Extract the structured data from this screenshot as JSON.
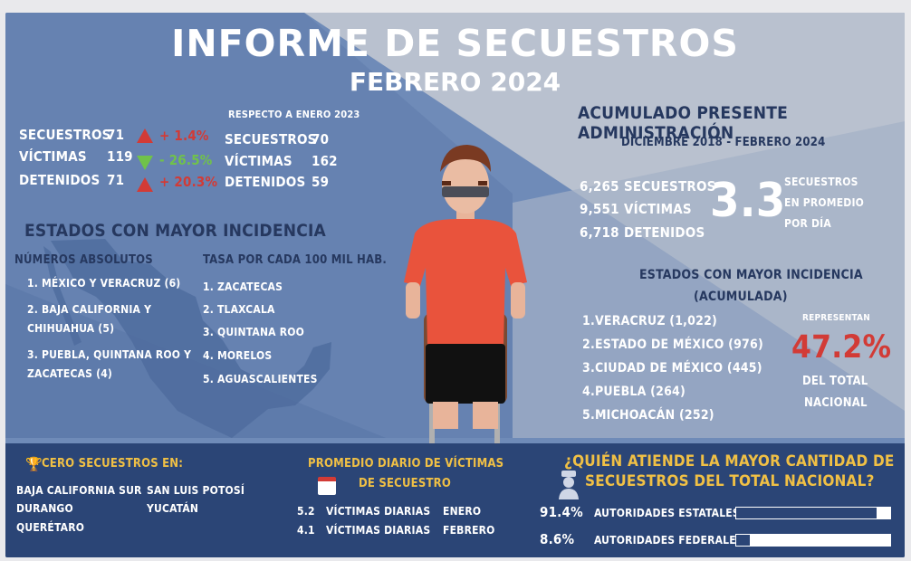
{
  "header": {
    "title": "INFORME DE SECUESTROS",
    "subtitle": "FEBRERO 2024"
  },
  "monthly": {
    "secuestros_label": "SECUESTROS",
    "secuestros_value": "71",
    "victimas_label": "VÍCTIMAS",
    "victimas_value": "119",
    "detenidos_label": "DETENIDOS",
    "detenidos_value": "71",
    "change_secuestros": "+ 1.4%",
    "change_victimas": "- 26.5%",
    "change_detenidos": "+ 20.3%"
  },
  "comparison": {
    "heading": "RESPECTO A ENERO 2023",
    "secuestros_label": "SECUESTROS",
    "secuestros_value": "70",
    "victimas_label": "VÍCTIMAS",
    "victimas_value": "162",
    "detenidos_label": "DETENIDOS",
    "detenidos_value": "59"
  },
  "states": {
    "heading": "ESTADOS CON MAYOR INCIDENCIA",
    "absolute_heading": "NÚMEROS ABSOLUTOS",
    "absolute_items": [
      "1. MÉXICO Y VERACRUZ (6)",
      "2. BAJA CALIFORNIA Y",
      "CHIHUAHUA (5)",
      "3. PUEBLA, QUINTANA ROO Y",
      "ZACATECAS (4)"
    ],
    "rate_heading": "TASA POR CADA 100 MIL HAB.",
    "rate_items": [
      "1. ZACATECAS",
      "2. TLAXCALA",
      "3. QUINTANA ROO",
      "4. MORELOS",
      "5. AGUASCALIENTES"
    ]
  },
  "cumulative": {
    "heading": "ACUMULADO PRESENTE ADMINISTRACIÓN",
    "period": "DICIEMBRE 2018 - FEBRERO 2024",
    "secuestros_value": "6,265",
    "secuestros_label": "SECUESTROS",
    "victimas_value": "9,551",
    "victimas_label": "VÍCTIMAS",
    "detenidos_value": "6,718",
    "detenidos_label": "DETENIDOS",
    "avg_value": "3.3",
    "avg_line1": "SECUESTROS",
    "avg_line2": "EN PROMEDIO",
    "avg_line3": "POR DÍA",
    "states_heading1": "ESTADOS CON MAYOR INCIDENCIA",
    "states_heading2": "(ACUMULADA)",
    "states_items": [
      "1.VERACRUZ (1,022)",
      "2.ESTADO DE MÉXICO (976)",
      "3.CIUDAD DE MÉXICO (445)",
      "4.PUEBLA (264)",
      "5.MICHOACÁN (252)"
    ],
    "represent_label": "REPRESENTAN",
    "represent_value": "47.2%",
    "represent_line1": "DEL TOTAL",
    "represent_line2": "NACIONAL"
  },
  "zero": {
    "heading": "CERO SECUESTROS EN:",
    "col1": [
      "BAJA CALIFORNIA SUR",
      "DURANGO",
      "QUERÉTARO"
    ],
    "col2": [
      "SAN LUIS POTOSÍ",
      "YUCATÁN"
    ]
  },
  "daily": {
    "heading1": "PROMEDIO DIARIO DE VÍCTIMAS",
    "heading2": "DE SECUESTRO",
    "rows": [
      {
        "value": "5.2",
        "label": "VÍCTIMAS DIARIAS",
        "month": "ENERO"
      },
      {
        "value": "4.1",
        "label": "VÍCTIMAS DIARIAS",
        "month": "FEBRERO"
      }
    ]
  },
  "who": {
    "heading1": "¿QUIÉN ATIENDE LA MAYOR CANTIDAD DE",
    "heading2": "SECUESTROS DEL TOTAL NACIONAL?",
    "rows": [
      {
        "pct": "91.4%",
        "label": "AUTORIDADES ESTATALES",
        "fraction": 0.914
      },
      {
        "pct": "8.6%",
        "label": "AUTORIDADES FEDERALES",
        "fraction": 0.086
      }
    ]
  },
  "colors": {
    "navy": "#26385f",
    "red": "#d23b36",
    "green": "#70c24a",
    "gold": "#f0c045",
    "bottom_bg": "#2b4576"
  }
}
